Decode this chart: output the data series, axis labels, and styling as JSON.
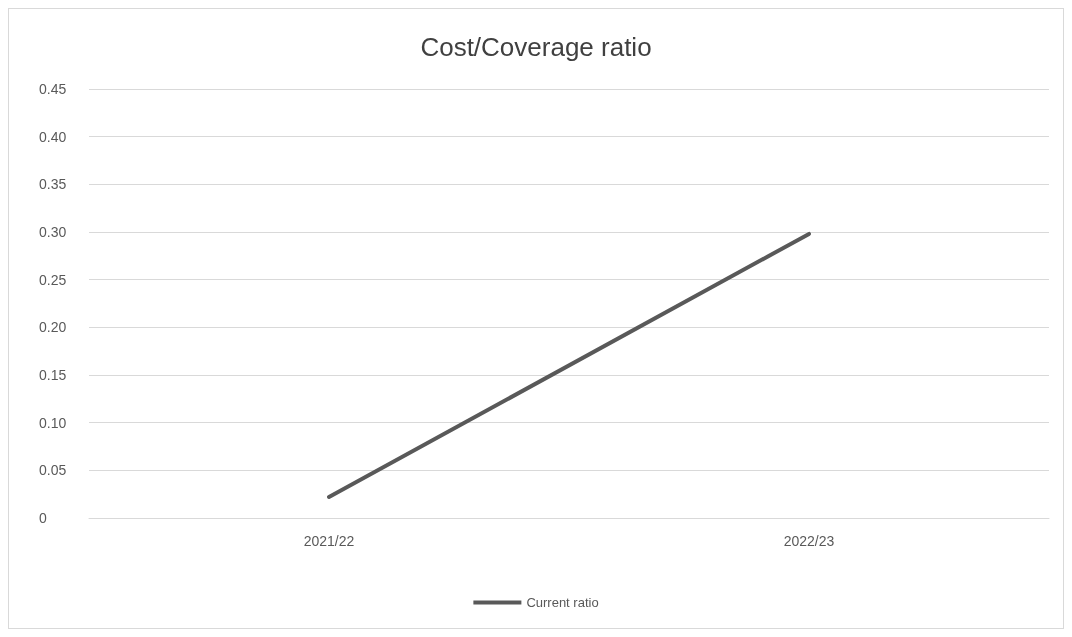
{
  "chart_data": {
    "type": "line",
    "title": "Cost/Coverage ratio",
    "categories": [
      "2021/22",
      "2022/23"
    ],
    "series": [
      {
        "name": "Current ratio",
        "color": "#595959",
        "values": [
          0.022,
          0.298
        ]
      }
    ],
    "ylim": [
      0,
      0.45
    ],
    "yticks": [
      0,
      0.05,
      {
        "value": 0.1,
        "label": "0.10"
      },
      0.15,
      {
        "value": 0.2,
        "label": "0.20"
      },
      0.25,
      {
        "value": 0.3,
        "label": "0.30"
      },
      0.35,
      {
        "value": 0.4,
        "label": "0.40"
      },
      0.45
    ],
    "grid": "y",
    "legend": "bottom",
    "marker": "none",
    "line_style": "solid"
  }
}
